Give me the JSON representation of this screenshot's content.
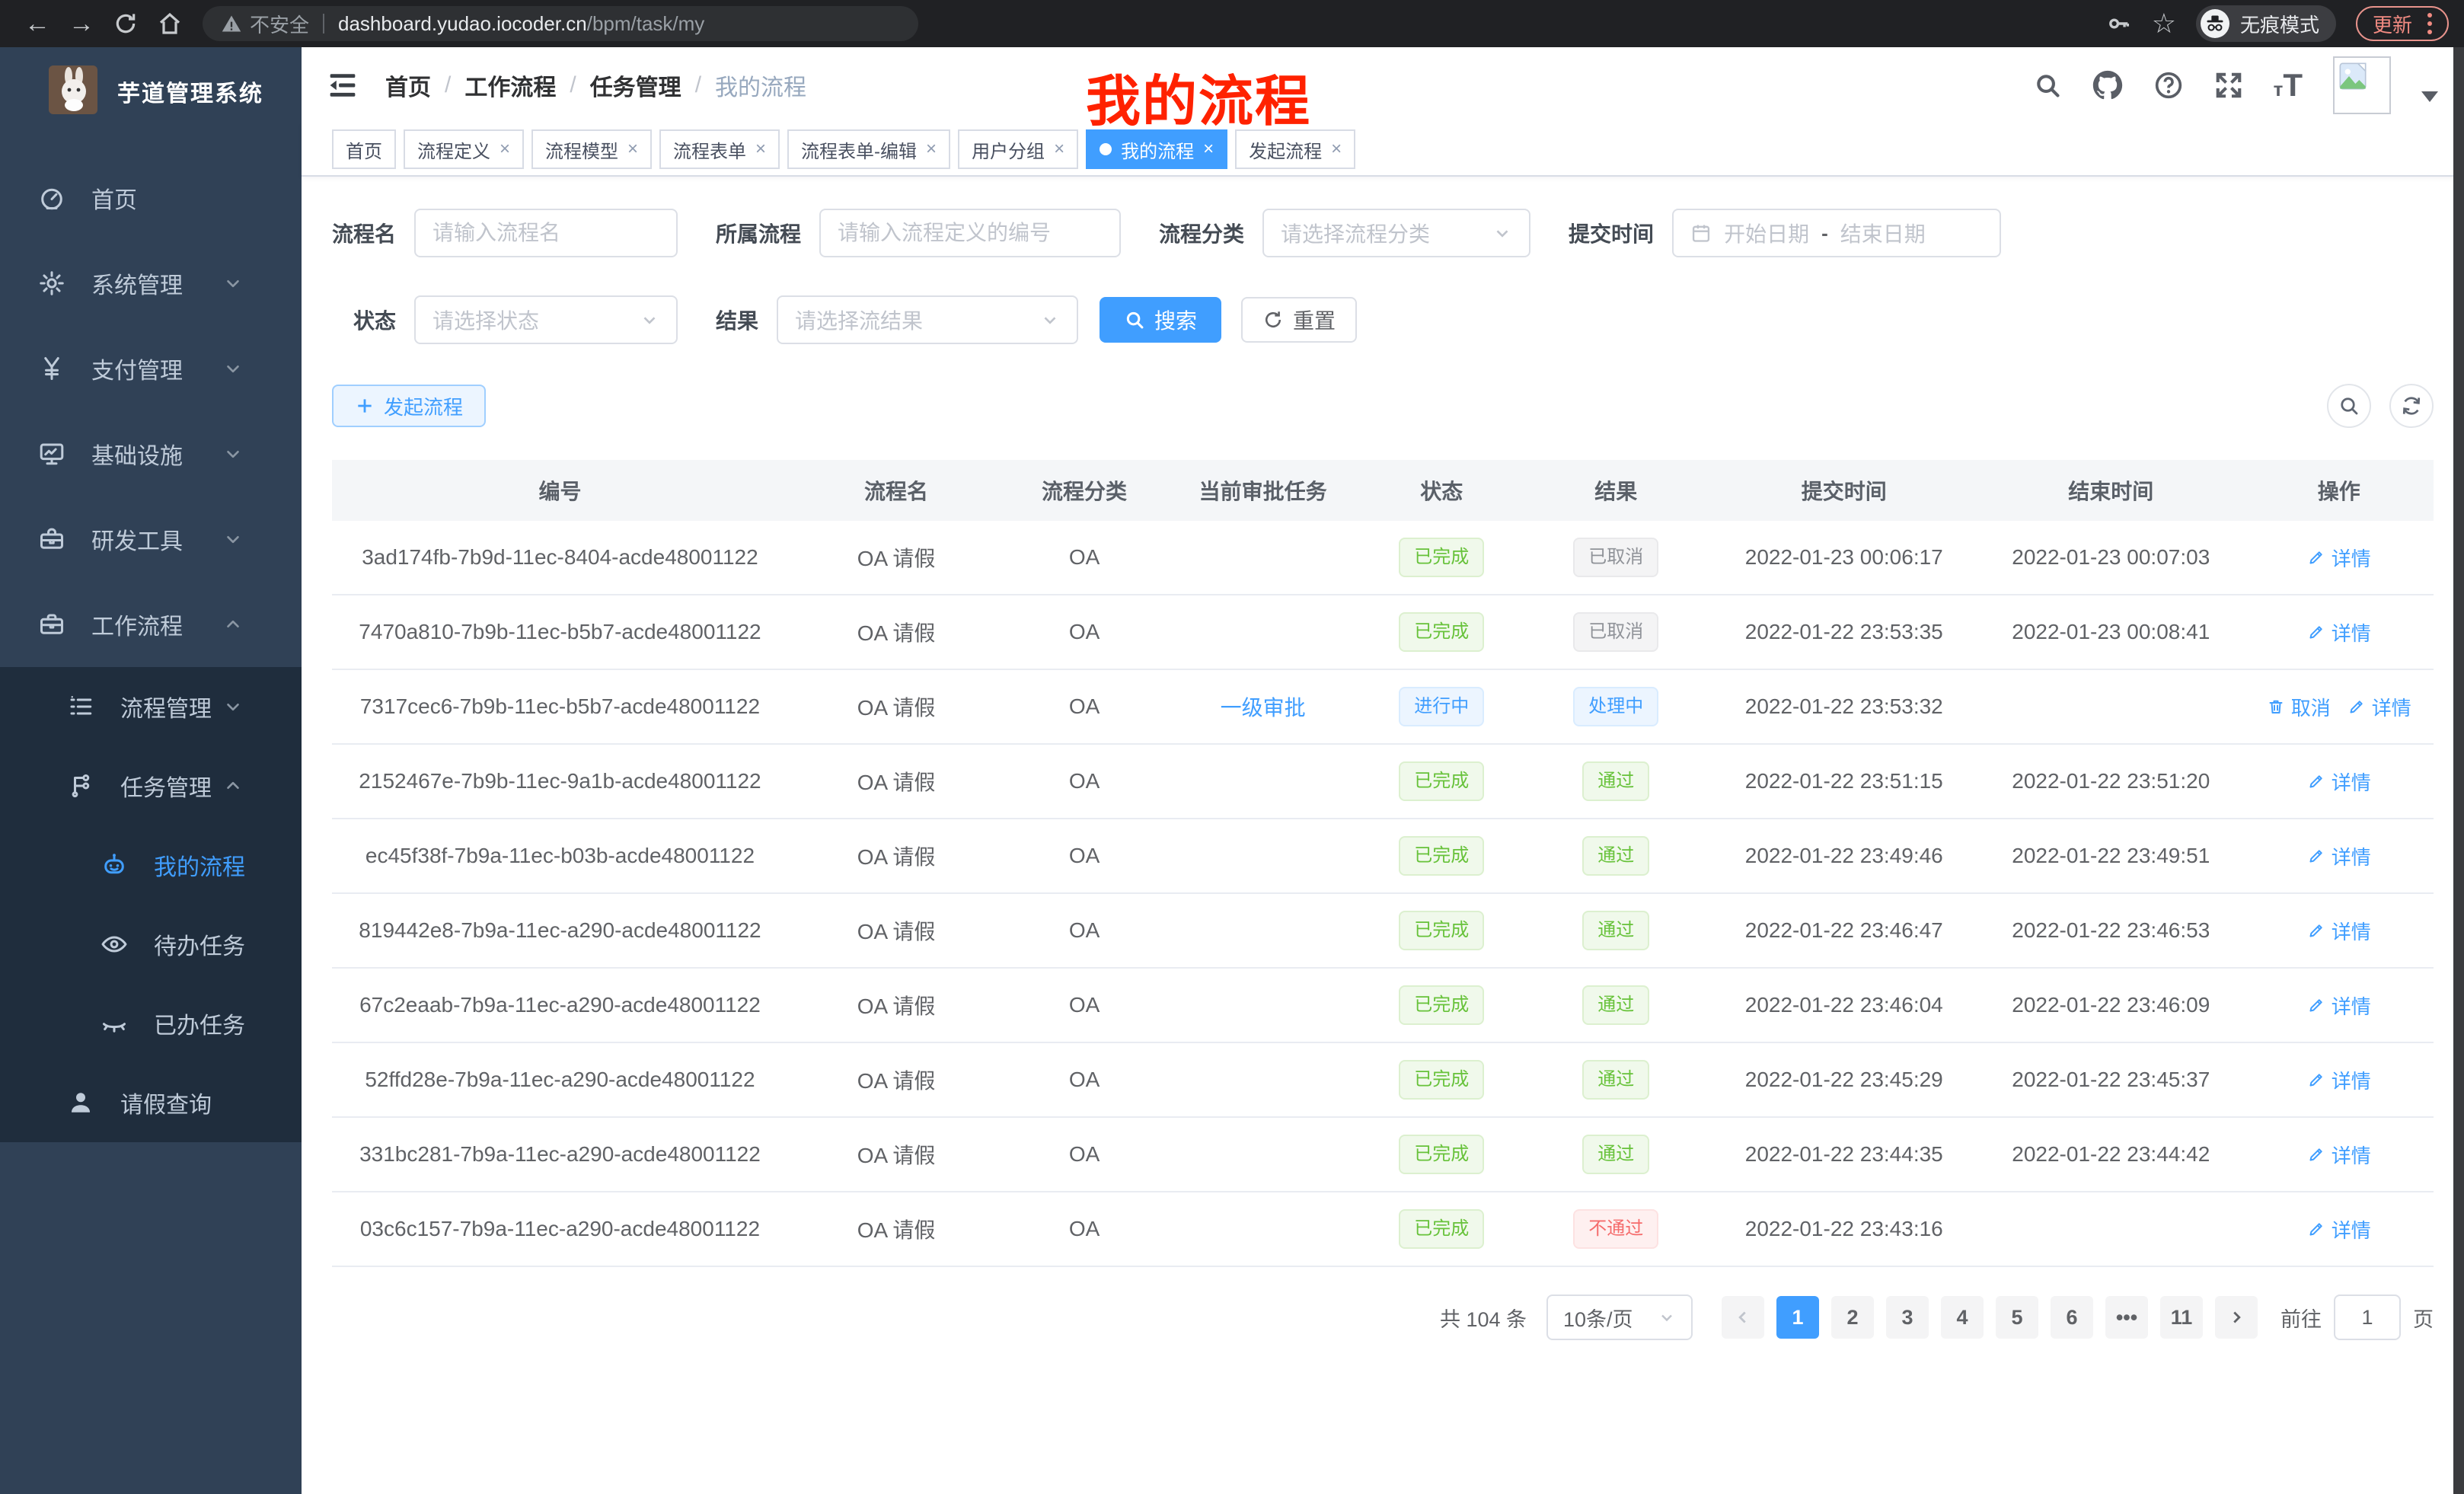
{
  "browser": {
    "security_label": "不安全",
    "url_host": "dashboard.yudao.iocoder.cn",
    "url_path": "/bpm/task/my",
    "incognito_label": "无痕模式",
    "update_label": "更新"
  },
  "sidebar": {
    "title": "芋道管理系统",
    "items": [
      {
        "icon": "dashboard-icon",
        "label": "首页",
        "level": 1
      },
      {
        "icon": "gear-icon",
        "label": "系统管理",
        "level": 1,
        "chevron": "down"
      },
      {
        "icon": "yen-icon",
        "label": "支付管理",
        "level": 1,
        "chevron": "down"
      },
      {
        "icon": "monitor-icon",
        "label": "基础设施",
        "level": 1,
        "chevron": "down"
      },
      {
        "icon": "toolbox-icon",
        "label": "研发工具",
        "level": 1,
        "chevron": "down"
      },
      {
        "icon": "briefcase-icon",
        "label": "工作流程",
        "level": 1,
        "chevron": "up"
      },
      {
        "icon": "list-icon",
        "label": "流程管理",
        "level": 2,
        "chevron": "down",
        "dark": true
      },
      {
        "icon": "flow-icon",
        "label": "任务管理",
        "level": 2,
        "chevron": "up",
        "dark": true
      },
      {
        "icon": "robot-icon",
        "label": "我的流程",
        "level": 3,
        "dark": true,
        "active": true
      },
      {
        "icon": "eye-icon",
        "label": "待办任务",
        "level": 3,
        "dark": true
      },
      {
        "icon": "eye-closed-icon",
        "label": "已办任务",
        "level": 3,
        "dark": true
      },
      {
        "icon": "user-icon",
        "label": "请假查询",
        "level": 2,
        "dark": true
      }
    ]
  },
  "navbar": {
    "breadcrumb": [
      "首页",
      "工作流程",
      "任务管理",
      "我的流程"
    ],
    "annotation": "我的流程"
  },
  "tags_view": [
    {
      "label": "首页",
      "closable": false
    },
    {
      "label": "流程定义",
      "closable": true
    },
    {
      "label": "流程模型",
      "closable": true
    },
    {
      "label": "流程表单",
      "closable": true
    },
    {
      "label": "流程表单-编辑",
      "closable": true
    },
    {
      "label": "用户分组",
      "closable": true
    },
    {
      "label": "我的流程",
      "closable": true,
      "active": true
    },
    {
      "label": "发起流程",
      "closable": true
    }
  ],
  "filters": {
    "name_label": "流程名",
    "name_placeholder": "请输入流程名",
    "def_label": "所属流程",
    "def_placeholder": "请输入流程定义的编号",
    "category_label": "流程分类",
    "category_placeholder": "请选择流程分类",
    "time_label": "提交时间",
    "time_start_placeholder": "开始日期",
    "time_separator": "-",
    "time_end_placeholder": "结束日期",
    "status_label": "状态",
    "status_placeholder": "请选择状态",
    "result_label": "结果",
    "result_placeholder": "请选择流结果",
    "search_button": "搜索",
    "reset_button": "重置"
  },
  "toolbar": {
    "create_button": "发起流程"
  },
  "table": {
    "columns": [
      "编号",
      "流程名",
      "流程分类",
      "当前审批任务",
      "状态",
      "结果",
      "提交时间",
      "结束时间",
      "操作"
    ],
    "detail_action": "详情",
    "cancel_action": "取消",
    "rows": [
      {
        "id": "3ad174fb-7b9d-11ec-8404-acde48001122",
        "name": "OA 请假",
        "category": "OA",
        "task": "",
        "status": {
          "text": "已完成",
          "type": "success"
        },
        "result": {
          "text": "已取消",
          "type": "info"
        },
        "submit": "2022-01-23 00:06:17",
        "end": "2022-01-23 00:07:03",
        "actions": [
          "detail"
        ]
      },
      {
        "id": "7470a810-7b9b-11ec-b5b7-acde48001122",
        "name": "OA 请假",
        "category": "OA",
        "task": "",
        "status": {
          "text": "已完成",
          "type": "success"
        },
        "result": {
          "text": "已取消",
          "type": "info"
        },
        "submit": "2022-01-22 23:53:35",
        "end": "2022-01-23 00:08:41",
        "actions": [
          "detail"
        ]
      },
      {
        "id": "7317cec6-7b9b-11ec-b5b7-acde48001122",
        "name": "OA 请假",
        "category": "OA",
        "task": "一级审批",
        "status": {
          "text": "进行中",
          "type": "primary"
        },
        "result": {
          "text": "处理中",
          "type": "primary"
        },
        "submit": "2022-01-22 23:53:32",
        "end": "",
        "actions": [
          "cancel",
          "detail"
        ]
      },
      {
        "id": "2152467e-7b9b-11ec-9a1b-acde48001122",
        "name": "OA 请假",
        "category": "OA",
        "task": "",
        "status": {
          "text": "已完成",
          "type": "success"
        },
        "result": {
          "text": "通过",
          "type": "success"
        },
        "submit": "2022-01-22 23:51:15",
        "end": "2022-01-22 23:51:20",
        "actions": [
          "detail"
        ]
      },
      {
        "id": "ec45f38f-7b9a-11ec-b03b-acde48001122",
        "name": "OA 请假",
        "category": "OA",
        "task": "",
        "status": {
          "text": "已完成",
          "type": "success"
        },
        "result": {
          "text": "通过",
          "type": "success"
        },
        "submit": "2022-01-22 23:49:46",
        "end": "2022-01-22 23:49:51",
        "actions": [
          "detail"
        ]
      },
      {
        "id": "819442e8-7b9a-11ec-a290-acde48001122",
        "name": "OA 请假",
        "category": "OA",
        "task": "",
        "status": {
          "text": "已完成",
          "type": "success"
        },
        "result": {
          "text": "通过",
          "type": "success"
        },
        "submit": "2022-01-22 23:46:47",
        "end": "2022-01-22 23:46:53",
        "actions": [
          "detail"
        ]
      },
      {
        "id": "67c2eaab-7b9a-11ec-a290-acde48001122",
        "name": "OA 请假",
        "category": "OA",
        "task": "",
        "status": {
          "text": "已完成",
          "type": "success"
        },
        "result": {
          "text": "通过",
          "type": "success"
        },
        "submit": "2022-01-22 23:46:04",
        "end": "2022-01-22 23:46:09",
        "actions": [
          "detail"
        ]
      },
      {
        "id": "52ffd28e-7b9a-11ec-a290-acde48001122",
        "name": "OA 请假",
        "category": "OA",
        "task": "",
        "status": {
          "text": "已完成",
          "type": "success"
        },
        "result": {
          "text": "通过",
          "type": "success"
        },
        "submit": "2022-01-22 23:45:29",
        "end": "2022-01-22 23:45:37",
        "actions": [
          "detail"
        ]
      },
      {
        "id": "331bc281-7b9a-11ec-a290-acde48001122",
        "name": "OA 请假",
        "category": "OA",
        "task": "",
        "status": {
          "text": "已完成",
          "type": "success"
        },
        "result": {
          "text": "通过",
          "type": "success"
        },
        "submit": "2022-01-22 23:44:35",
        "end": "2022-01-22 23:44:42",
        "actions": [
          "detail"
        ]
      },
      {
        "id": "03c6c157-7b9a-11ec-a290-acde48001122",
        "name": "OA 请假",
        "category": "OA",
        "task": "",
        "status": {
          "text": "已完成",
          "type": "success"
        },
        "result": {
          "text": "不通过",
          "type": "danger"
        },
        "submit": "2022-01-22 23:43:16",
        "end": "",
        "actions": [
          "detail"
        ]
      }
    ]
  },
  "pagination": {
    "total_text": "共 104 条",
    "page_size": "10条/页",
    "pages": [
      "1",
      "2",
      "3",
      "4",
      "5",
      "6",
      "•••",
      "11"
    ],
    "active_page": "1",
    "goto_label": "前往",
    "goto_value": "1",
    "goto_suffix": "页"
  },
  "colors": {
    "accent": "#409EFF",
    "sidebar_bg": "#304156",
    "submenu_bg": "#1f2d3d",
    "annotation_red": "#ff2200",
    "success": "#67c23a",
    "info": "#909399",
    "danger": "#f56c6c"
  }
}
